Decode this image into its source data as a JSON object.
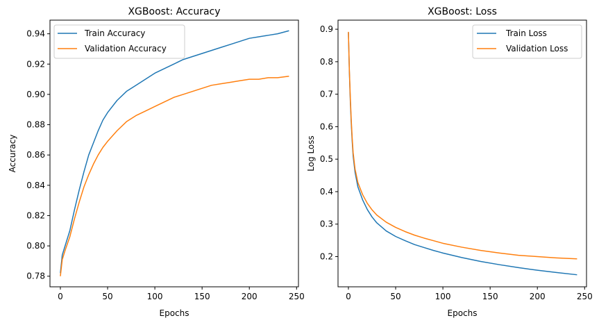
{
  "chart_data": [
    {
      "type": "line",
      "title": "XGBoost: Accuracy",
      "xlabel": "Epochs",
      "ylabel": "Accuracy",
      "xlim": [
        -11,
        252
      ],
      "ylim": [
        0.773,
        0.949
      ],
      "xticks": [
        0,
        50,
        100,
        150,
        200,
        250
      ],
      "yticks": [
        0.78,
        0.8,
        0.82,
        0.84,
        0.86,
        0.88,
        0.9,
        0.92,
        0.94
      ],
      "xtick_labels": [
        "0",
        "50",
        "100",
        "150",
        "200",
        "250"
      ],
      "ytick_labels": [
        "0.78",
        "0.80",
        "0.82",
        "0.84",
        "0.86",
        "0.88",
        "0.90",
        "0.92",
        "0.94"
      ],
      "grid": false,
      "legend_position": "top-left",
      "series": [
        {
          "name": "Train Accuracy",
          "color": "#1f77b4",
          "x": [
            0,
            2,
            5,
            10,
            15,
            20,
            25,
            30,
            35,
            40,
            45,
            50,
            60,
            70,
            80,
            90,
            100,
            110,
            120,
            130,
            140,
            150,
            160,
            170,
            180,
            190,
            200,
            210,
            220,
            230,
            242
          ],
          "values": [
            0.782,
            0.794,
            0.8,
            0.81,
            0.824,
            0.837,
            0.849,
            0.86,
            0.868,
            0.876,
            0.883,
            0.888,
            0.896,
            0.902,
            0.906,
            0.91,
            0.914,
            0.917,
            0.92,
            0.923,
            0.925,
            0.927,
            0.929,
            0.931,
            0.933,
            0.935,
            0.937,
            0.938,
            0.939,
            0.94,
            0.942
          ]
        },
        {
          "name": "Validation Accuracy",
          "color": "#ff7f0e",
          "x": [
            0,
            2,
            5,
            10,
            15,
            20,
            25,
            30,
            35,
            40,
            45,
            50,
            60,
            70,
            80,
            90,
            100,
            110,
            120,
            130,
            140,
            150,
            160,
            170,
            180,
            190,
            200,
            210,
            220,
            230,
            242
          ],
          "values": [
            0.78,
            0.791,
            0.797,
            0.806,
            0.818,
            0.829,
            0.839,
            0.847,
            0.854,
            0.86,
            0.865,
            0.869,
            0.876,
            0.882,
            0.886,
            0.889,
            0.892,
            0.895,
            0.898,
            0.9,
            0.902,
            0.904,
            0.906,
            0.907,
            0.908,
            0.909,
            0.91,
            0.91,
            0.911,
            0.911,
            0.912
          ]
        }
      ]
    },
    {
      "type": "line",
      "title": "XGBoost: Loss",
      "xlabel": "Epochs",
      "ylabel": "Log Loss",
      "xlim": [
        -11,
        252
      ],
      "ylim": [
        0.107,
        0.928
      ],
      "xticks": [
        0,
        50,
        100,
        150,
        200,
        250
      ],
      "yticks": [
        0.2,
        0.3,
        0.4,
        0.5,
        0.6,
        0.7,
        0.8,
        0.9
      ],
      "xtick_labels": [
        "0",
        "50",
        "100",
        "150",
        "200",
        "250"
      ],
      "ytick_labels": [
        "0.2",
        "0.3",
        "0.4",
        "0.5",
        "0.6",
        "0.7",
        "0.8",
        "0.9"
      ],
      "grid": false,
      "legend_position": "top-right",
      "series": [
        {
          "name": "Train Loss",
          "color": "#1f77b4",
          "x": [
            0,
            1,
            2,
            3,
            4,
            5,
            7,
            10,
            15,
            20,
            25,
            30,
            40,
            50,
            60,
            70,
            80,
            90,
            100,
            120,
            140,
            160,
            180,
            200,
            220,
            242
          ],
          "values": [
            0.89,
            0.77,
            0.68,
            0.61,
            0.555,
            0.51,
            0.46,
            0.415,
            0.375,
            0.345,
            0.322,
            0.304,
            0.279,
            0.262,
            0.249,
            0.237,
            0.228,
            0.219,
            0.211,
            0.197,
            0.185,
            0.175,
            0.166,
            0.158,
            0.151,
            0.144
          ]
        },
        {
          "name": "Validation Loss",
          "color": "#ff7f0e",
          "x": [
            0,
            1,
            2,
            3,
            4,
            5,
            7,
            10,
            15,
            20,
            25,
            30,
            40,
            50,
            60,
            70,
            80,
            90,
            100,
            120,
            140,
            160,
            180,
            200,
            220,
            242
          ],
          "values": [
            0.892,
            0.775,
            0.69,
            0.62,
            0.565,
            0.52,
            0.47,
            0.428,
            0.391,
            0.364,
            0.344,
            0.328,
            0.306,
            0.29,
            0.277,
            0.266,
            0.257,
            0.249,
            0.241,
            0.229,
            0.219,
            0.211,
            0.204,
            0.2,
            0.196,
            0.193
          ]
        }
      ]
    }
  ]
}
